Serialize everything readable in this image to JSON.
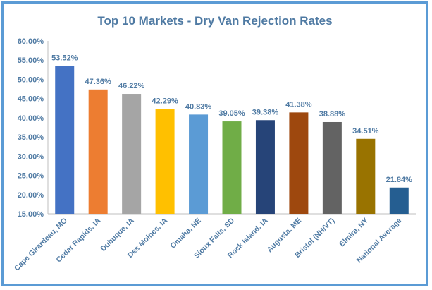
{
  "chart_data": {
    "type": "bar",
    "title": "Top 10 Markets - Dry Van Rejection Rates",
    "categories": [
      "Cape Girardeau, MO",
      "Cedar Rapids, IA",
      "Dubuque, IA",
      "Des Moines, IA",
      "Omaha, NE",
      "Sioux Falls, SD",
      "Rock Island, IA",
      "Augusta, ME",
      "Bristol (NH/VT)",
      "Elmira, NY",
      "National Average"
    ],
    "values": [
      53.52,
      47.36,
      46.22,
      42.29,
      40.83,
      39.05,
      39.38,
      41.38,
      38.88,
      34.51,
      21.84
    ],
    "value_labels": [
      "53.52%",
      "47.36%",
      "46.22%",
      "42.29%",
      "40.83%",
      "39.05%",
      "39.38%",
      "41.38%",
      "38.88%",
      "34.51%",
      "21.84%"
    ],
    "colors": [
      "#4472c4",
      "#ed7d31",
      "#a5a5a5",
      "#ffc000",
      "#5b9bd5",
      "#70ad47",
      "#264478",
      "#9e480e",
      "#636363",
      "#997300",
      "#255e91"
    ],
    "ylim": [
      15,
      60
    ],
    "yticks": [
      "15.00%",
      "20.00%",
      "25.00%",
      "30.00%",
      "35.00%",
      "40.00%",
      "45.00%",
      "50.00%",
      "55.00%",
      "60.00%"
    ],
    "ytick_values": [
      15,
      20,
      25,
      30,
      35,
      40,
      45,
      50,
      55,
      60
    ],
    "grid": false,
    "legend": "none"
  }
}
